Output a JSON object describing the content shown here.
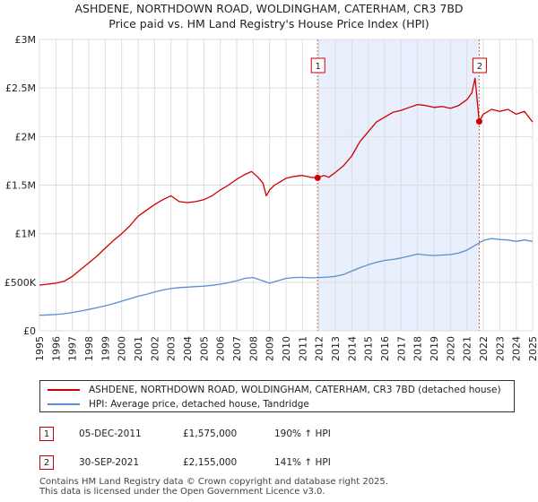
{
  "header": {
    "title": "ASHDENE, NORTHDOWN ROAD, WOLDINGHAM, CATERHAM, CR3 7BD",
    "subtitle": "Price paid vs. HM Land Registry's House Price Index (HPI)"
  },
  "colors": {
    "property": "#cc0000",
    "hpi": "#5b8fd0",
    "shade": "#e8eefb",
    "grid": "#dddddd",
    "vline": "#e06060"
  },
  "chart_data": {
    "type": "line",
    "title": "ASHDENE, NORTHDOWN ROAD, WOLDINGHAM, CATERHAM, CR3 7BD",
    "subtitle": "Price paid vs. HM Land Registry's House Price Index (HPI)",
    "xlim": [
      1995,
      2025
    ],
    "ylim": [
      0,
      3000000
    ],
    "yticks": [
      0,
      500000,
      1000000,
      1500000,
      2000000,
      2500000,
      3000000
    ],
    "ytick_labels": [
      "£0",
      "£500K",
      "£1M",
      "£1.5M",
      "£2M",
      "£2.5M",
      "£3M"
    ],
    "xticks": [
      "1995",
      "1996",
      "1997",
      "1998",
      "1999",
      "2000",
      "2001",
      "2002",
      "2003",
      "2004",
      "2005",
      "2006",
      "2007",
      "2008",
      "2009",
      "2010",
      "2011",
      "2012",
      "2013",
      "2014",
      "2015",
      "2016",
      "2017",
      "2018",
      "2019",
      "2020",
      "2021",
      "2022",
      "2023",
      "2024",
      "2025"
    ],
    "grid": true,
    "shaded_range": [
      2011.92,
      2021.75
    ],
    "series": [
      {
        "name": "ASHDENE, NORTHDOWN ROAD, WOLDINGHAM, CATERHAM, CR3 7BD (detached house)",
        "x": [
          1995.0,
          1995.5,
          1996.0,
          1996.5,
          1997.0,
          1997.5,
          1998.0,
          1998.5,
          1999.0,
          1999.5,
          2000.0,
          2000.5,
          2001.0,
          2001.5,
          2002.0,
          2002.5,
          2003.0,
          2003.5,
          2004.0,
          2004.5,
          2005.0,
          2005.5,
          2006.0,
          2006.5,
          2007.0,
          2007.5,
          2007.9,
          2008.3,
          2008.6,
          2008.8,
          2009.0,
          2009.3,
          2009.6,
          2010.0,
          2010.5,
          2011.0,
          2011.5,
          2011.92,
          2012.3,
          2012.6,
          2013.0,
          2013.5,
          2014.0,
          2014.5,
          2015.0,
          2015.5,
          2016.0,
          2016.5,
          2017.0,
          2017.5,
          2018.0,
          2018.5,
          2019.0,
          2019.5,
          2020.0,
          2020.5,
          2021.0,
          2021.3,
          2021.5,
          2021.6,
          2021.75,
          2022.0,
          2022.5,
          2023.0,
          2023.5,
          2024.0,
          2024.5,
          2025.0
        ],
        "values": [
          470000,
          480000,
          490000,
          510000,
          560000,
          630000,
          700000,
          770000,
          850000,
          930000,
          1000000,
          1080000,
          1180000,
          1240000,
          1300000,
          1350000,
          1390000,
          1330000,
          1320000,
          1330000,
          1350000,
          1390000,
          1450000,
          1500000,
          1560000,
          1610000,
          1640000,
          1580000,
          1520000,
          1390000,
          1450000,
          1500000,
          1530000,
          1570000,
          1590000,
          1600000,
          1580000,
          1575000,
          1600000,
          1580000,
          1630000,
          1700000,
          1800000,
          1950000,
          2050000,
          2150000,
          2200000,
          2250000,
          2270000,
          2300000,
          2330000,
          2320000,
          2300000,
          2310000,
          2290000,
          2320000,
          2380000,
          2450000,
          2600000,
          2420000,
          2155000,
          2230000,
          2280000,
          2260000,
          2280000,
          2230000,
          2260000,
          2150000
        ]
      },
      {
        "name": "HPI: Average price, detached house, Tandridge",
        "x": [
          1995.0,
          1995.5,
          1996.0,
          1996.5,
          1997.0,
          1997.5,
          1998.0,
          1998.5,
          1999.0,
          1999.5,
          2000.0,
          2000.5,
          2001.0,
          2001.5,
          2002.0,
          2002.5,
          2003.0,
          2003.5,
          2004.0,
          2004.5,
          2005.0,
          2005.5,
          2006.0,
          2006.5,
          2007.0,
          2007.5,
          2008.0,
          2008.5,
          2009.0,
          2009.5,
          2010.0,
          2010.5,
          2011.0,
          2011.5,
          2012.0,
          2012.5,
          2013.0,
          2013.5,
          2014.0,
          2014.5,
          2015.0,
          2015.5,
          2016.0,
          2016.5,
          2017.0,
          2017.5,
          2018.0,
          2018.5,
          2019.0,
          2019.5,
          2020.0,
          2020.5,
          2021.0,
          2021.5,
          2022.0,
          2022.5,
          2023.0,
          2023.5,
          2024.0,
          2024.5,
          2025.0
        ],
        "values": [
          160000,
          163000,
          168000,
          175000,
          188000,
          203000,
          220000,
          238000,
          258000,
          280000,
          305000,
          330000,
          355000,
          375000,
          400000,
          420000,
          435000,
          445000,
          450000,
          455000,
          460000,
          468000,
          480000,
          495000,
          515000,
          540000,
          548000,
          520000,
          490000,
          515000,
          540000,
          548000,
          550000,
          545000,
          548000,
          553000,
          560000,
          580000,
          615000,
          650000,
          680000,
          705000,
          725000,
          735000,
          750000,
          770000,
          790000,
          780000,
          775000,
          780000,
          785000,
          800000,
          830000,
          880000,
          930000,
          950000,
          940000,
          935000,
          920000,
          935000,
          920000
        ]
      }
    ],
    "markers": [
      {
        "label": "1",
        "x": 2011.92,
        "y": 1575000
      },
      {
        "label": "2",
        "x": 2021.75,
        "y": 2155000
      }
    ]
  },
  "legend": {
    "items": [
      {
        "label": "ASHDENE, NORTHDOWN ROAD, WOLDINGHAM, CATERHAM, CR3 7BD (detached house)"
      },
      {
        "label": "HPI: Average price, detached house, Tandridge"
      }
    ]
  },
  "transactions": [
    {
      "num": "1",
      "date": "05-DEC-2011",
      "price": "£1,575,000",
      "hpi": "190% ↑ HPI"
    },
    {
      "num": "2",
      "date": "30-SEP-2021",
      "price": "£2,155,000",
      "hpi": "141% ↑ HPI"
    }
  ],
  "footer": {
    "line1": "Contains HM Land Registry data © Crown copyright and database right 2025.",
    "line2": "This data is licensed under the Open Government Licence v3.0."
  }
}
